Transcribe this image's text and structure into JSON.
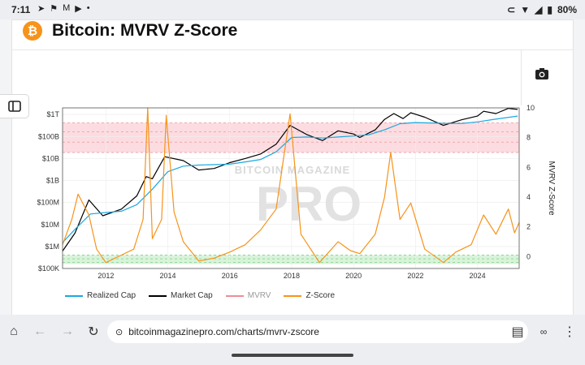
{
  "status": {
    "time": "7:11",
    "battery": "80%"
  },
  "page": {
    "title": "Bitcoin: MVRV Z-Score"
  },
  "browser": {
    "url": "bitcoinmagazinepro.com/charts/mvrv-zscore"
  },
  "icons": [
    "telegram-icon",
    "flag-icon",
    "gmail-icon",
    "youtube-icon",
    "cast-icon",
    "wifi-icon",
    "signal-icon",
    "battery-icon",
    "camera-icon",
    "sidebar-toggle-icon",
    "home-icon",
    "back-icon",
    "forward-icon",
    "reload-icon",
    "site-info-icon",
    "reader-icon",
    "tabs-icon",
    "menu-icon"
  ],
  "chart_data": {
    "type": "line",
    "watermark": "BITCOIN MAGAZINE PRO",
    "ylabel_right": "MVRV Z-Score",
    "y_left_ticks": [
      "$1T",
      "$100B",
      "$10B",
      "$1B",
      "$100M",
      "$10M",
      "$1M",
      "$100K"
    ],
    "y_right_ticks": [
      "10",
      "8",
      "6",
      "4",
      "2",
      "0"
    ],
    "x_ticks": [
      "2012",
      "2014",
      "2016",
      "2018",
      "2020",
      "2022",
      "2024"
    ],
    "legend": [
      {
        "name": "Realized Cap",
        "color": "#1ba8e0"
      },
      {
        "name": "Market Cap",
        "color": "#000000"
      },
      {
        "name": "MVRV",
        "color": "#f08a9a"
      },
      {
        "name": "Z-Score",
        "color": "#f7931a"
      }
    ],
    "zones": {
      "red_zscore_range": [
        7,
        9
      ],
      "green_zscore_range": [
        -0.5,
        0.1
      ]
    },
    "series": [
      {
        "name": "Market Cap",
        "x": [
          2010.6,
          2011.0,
          2011.45,
          2011.9,
          2012.5,
          2013.0,
          2013.3,
          2013.5,
          2013.9,
          2014.5,
          2015.0,
          2015.5,
          2016.0,
          2016.5,
          2017.0,
          2017.5,
          2017.95,
          2018.5,
          2019.0,
          2019.5,
          2020.0,
          2020.2,
          2020.7,
          2021.0,
          2021.3,
          2021.6,
          2021.85,
          2022.3,
          2022.9,
          2023.5,
          2024.0,
          2024.2,
          2024.6,
          2025.0,
          2025.3
        ],
        "y": [
          620000.0,
          4000000.0,
          130000000.0,
          25000000.0,
          50000000.0,
          200000000.0,
          1500000000.0,
          1200000000.0,
          12000000000.0,
          8000000000.0,
          3000000000.0,
          3500000000.0,
          6500000000.0,
          10000000000.0,
          16000000000.0,
          45000000000.0,
          320000000000.0,
          120000000000.0,
          65000000000.0,
          180000000000.0,
          130000000000.0,
          90000000000.0,
          200000000000.0,
          600000000000.0,
          1100000000000.0,
          650000000000.0,
          1200000000000.0,
          750000000000.0,
          320000000000.0,
          580000000000.0,
          850000000000.0,
          1400000000000.0,
          1100000000000.0,
          1900000000000.0,
          1700000000000.0
        ]
      },
      {
        "name": "Realized Cap",
        "x": [
          2010.6,
          2011.0,
          2011.5,
          2012.0,
          2012.5,
          2013.0,
          2013.5,
          2014.0,
          2014.5,
          2015.0,
          2016.0,
          2016.5,
          2017.0,
          2017.5,
          2018.0,
          2018.5,
          2019.0,
          2019.5,
          2020.0,
          2020.5,
          2021.0,
          2021.5,
          2022.0,
          2022.5,
          2023.0,
          2023.5,
          2024.0,
          2024.5,
          2025.3
        ],
        "y": [
          1500000.0,
          6000000.0,
          30000000.0,
          35000000.0,
          40000000.0,
          80000000.0,
          400000000.0,
          2500000000.0,
          4500000000.0,
          5000000000.0,
          5500000000.0,
          7000000000.0,
          9000000000.0,
          20000000000.0,
          90000000000.0,
          95000000000.0,
          85000000000.0,
          95000000000.0,
          105000000000.0,
          120000000000.0,
          200000000000.0,
          380000000000.0,
          430000000000.0,
          410000000000.0,
          390000000000.0,
          390000000000.0,
          460000000000.0,
          590000000000.0,
          850000000000.0
        ]
      },
      {
        "name": "Z-Score",
        "x": [
          2010.6,
          2010.9,
          2011.1,
          2011.45,
          2011.7,
          2012.0,
          2012.5,
          2012.9,
          2013.2,
          2013.35,
          2013.5,
          2013.8,
          2013.95,
          2014.2,
          2014.5,
          2015.0,
          2015.5,
          2016.0,
          2016.5,
          2017.0,
          2017.5,
          2017.95,
          2018.3,
          2018.9,
          2019.5,
          2019.9,
          2020.2,
          2020.7,
          2021.0,
          2021.2,
          2021.5,
          2021.85,
          2022.3,
          2022.9,
          2023.3,
          2023.8,
          2024.2,
          2024.6,
          2025.0,
          2025.2,
          2025.35
        ],
        "y": [
          0.8,
          2.5,
          4.2,
          2.8,
          0.5,
          -0.4,
          0.1,
          0.5,
          2.5,
          10,
          1.2,
          2.5,
          9.5,
          3,
          1,
          -0.3,
          -0.1,
          0.3,
          0.8,
          1.8,
          3.2,
          9.6,
          1.5,
          -0.4,
          1,
          0.4,
          0.2,
          1.5,
          4,
          7,
          2.5,
          3.6,
          0.5,
          -0.4,
          0.3,
          0.8,
          2.8,
          1.5,
          3.2,
          1.6,
          2.3
        ]
      }
    ]
  }
}
